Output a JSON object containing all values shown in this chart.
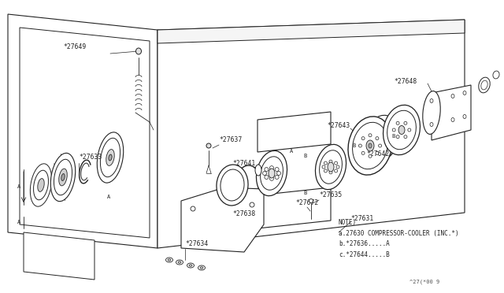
{
  "bg_color": "#ffffff",
  "line_color": "#222222",
  "text_color": "#222222",
  "figsize": [
    6.4,
    3.72
  ],
  "dpi": 100,
  "note_lines": [
    "NOTE)",
    "a.27630 COMPRESSOR-COOLER (INC.*)",
    "b.*27636.....A",
    "c.*27644.....B"
  ],
  "diagram_id": "^27(*00 9"
}
